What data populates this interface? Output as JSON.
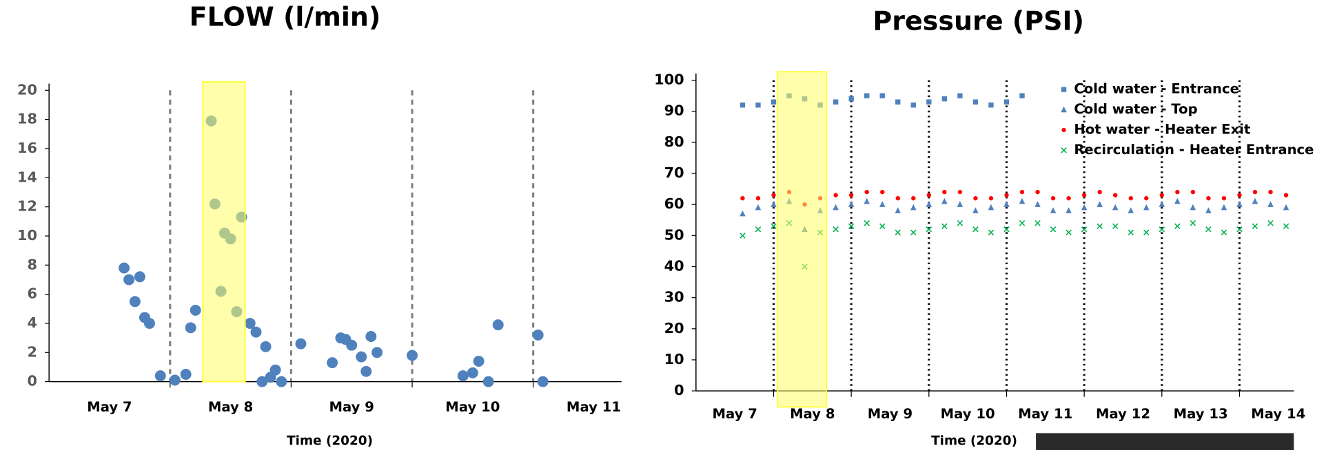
{
  "chart_data": [
    {
      "type": "scatter",
      "title": "FLOW (l/min)",
      "x_label": "Time (2020)",
      "color": "#4f81bd",
      "x": [
        0.62,
        0.66,
        0.75,
        0.71,
        0.79,
        0.83,
        0.92,
        1.04,
        1.13,
        1.17,
        1.21,
        1.34,
        1.37,
        1.42,
        1.45,
        1.5,
        1.55,
        1.59,
        1.66,
        1.71,
        1.76,
        1.79,
        1.83,
        1.87,
        1.92,
        2.08,
        2.34,
        2.41,
        2.45,
        2.5,
        2.58,
        2.62,
        2.66,
        2.71,
        3.0,
        3.42,
        3.5,
        3.55,
        3.63,
        3.71,
        4.04,
        4.08
      ],
      "values": [
        7.8,
        7.0,
        7.2,
        5.5,
        4.4,
        4.0,
        0.4,
        0.1,
        0.5,
        3.7,
        4.9,
        17.9,
        12.2,
        6.2,
        10.2,
        9.8,
        4.8,
        11.3,
        4.0,
        3.4,
        0.0,
        2.4,
        0.3,
        0.8,
        0.0,
        2.6,
        1.3,
        3.0,
        2.9,
        2.5,
        1.7,
        0.7,
        3.1,
        2.0,
        1.8,
        0.4,
        0.6,
        1.4,
        0.0,
        3.9,
        3.2,
        0.0
      ],
      "xlim": [
        0,
        4.73
      ],
      "ylim": [
        0,
        20
      ],
      "xticks": [
        {
          "value": 0.5,
          "label": "May 7"
        },
        {
          "value": 1.5,
          "label": "May 8"
        },
        {
          "value": 2.5,
          "label": "May 9"
        },
        {
          "value": 3.5,
          "label": "May 10"
        },
        {
          "value": 4.5,
          "label": "May 11"
        }
      ],
      "yticks": [
        0,
        2,
        4,
        6,
        8,
        10,
        12,
        14,
        16,
        18,
        20
      ],
      "vlines": [
        1,
        2,
        3,
        4
      ],
      "highlight": [
        1.27,
        1.62
      ]
    },
    {
      "type": "scatter",
      "title": "Pressure (PSI)",
      "x_label": "Time (2020)",
      "legend": "upper right",
      "x": [
        0.6,
        0.8,
        1.0,
        1.2,
        1.4,
        1.6,
        1.8,
        2.0,
        2.2,
        2.4,
        2.6,
        2.8,
        3.0,
        3.2,
        3.4,
        3.6,
        3.8,
        4.0,
        4.2,
        4.4,
        4.6,
        4.8,
        5.0,
        5.2,
        5.4,
        5.6,
        5.8,
        6.0,
        6.2,
        6.4,
        6.6,
        6.8,
        7.0,
        7.2,
        7.4,
        7.6
      ],
      "series": [
        {
          "name": "Cold water - Entrance",
          "color": "#4f81bd",
          "marker": "square",
          "values": [
            92,
            92,
            93,
            95,
            94,
            92,
            93,
            94,
            95,
            95,
            93,
            92,
            93,
            94,
            95,
            93,
            92,
            93,
            95,
            null,
            null,
            null,
            null,
            null,
            null,
            null,
            null,
            null,
            null,
            null,
            null,
            null,
            null,
            null,
            null,
            null
          ]
        },
        {
          "name": "Cold water - Top",
          "color": "#4f81bd",
          "marker": "triangle",
          "values": [
            57,
            59,
            60,
            61,
            52,
            58,
            59,
            60,
            61,
            60,
            58,
            59,
            60,
            61,
            60,
            58,
            59,
            60,
            61,
            60,
            58,
            58,
            59,
            60,
            59,
            58,
            59,
            60,
            61,
            59,
            58,
            59,
            60,
            61,
            60,
            59
          ]
        },
        {
          "name": "Hot water - Heater Exit",
          "color": "#ff0000",
          "marker": "dot",
          "values": [
            62,
            62,
            63,
            64,
            60,
            62,
            63,
            63,
            64,
            64,
            62,
            62,
            63,
            64,
            64,
            62,
            62,
            63,
            64,
            64,
            62,
            62,
            63,
            64,
            63,
            62,
            62,
            63,
            64,
            64,
            62,
            62,
            63,
            64,
            64,
            63
          ]
        },
        {
          "name": "Recirculation - Heater Entrance",
          "color": "#00b050",
          "marker": "x",
          "values": [
            50,
            52,
            53,
            54,
            40,
            51,
            52,
            53,
            54,
            53,
            51,
            51,
            52,
            53,
            54,
            52,
            51,
            52,
            54,
            54,
            52,
            51,
            52,
            53,
            53,
            51,
            51,
            52,
            53,
            54,
            52,
            51,
            52,
            53,
            54,
            53
          ]
        }
      ],
      "xlim": [
        0,
        7.7
      ],
      "ylim": [
        0,
        100
      ],
      "xticks": [
        {
          "value": 0.5,
          "label": "May 7"
        },
        {
          "value": 1.5,
          "label": "May 8"
        },
        {
          "value": 2.5,
          "label": "May 9"
        },
        {
          "value": 3.5,
          "label": "May 10"
        },
        {
          "value": 4.5,
          "label": "May 11"
        },
        {
          "value": 5.5,
          "label": "May 12"
        },
        {
          "value": 6.5,
          "label": "May 13"
        },
        {
          "value": 7.5,
          "label": "May 14"
        }
      ],
      "yticks": [
        0,
        10,
        20,
        30,
        40,
        50,
        60,
        70,
        80,
        90,
        100
      ],
      "vlines": [
        1,
        2,
        3,
        4,
        5,
        6,
        7
      ],
      "highlight": [
        1.05,
        1.68
      ]
    }
  ]
}
